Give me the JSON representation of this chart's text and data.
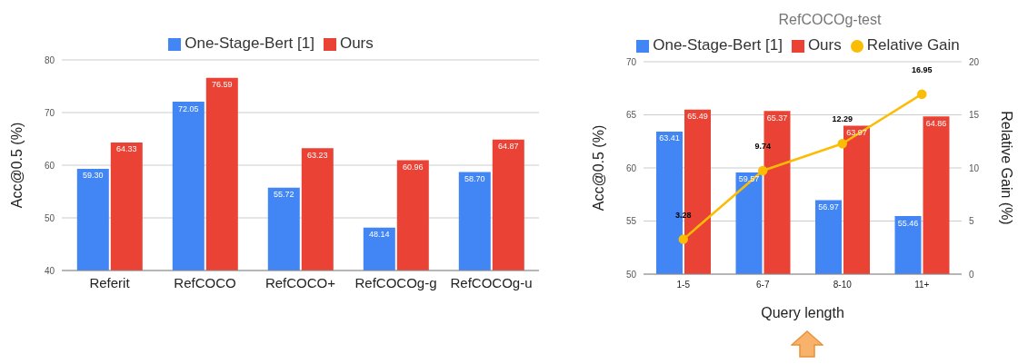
{
  "chart_data": [
    {
      "type": "bar",
      "categories": [
        "Referit",
        "RefCOCO",
        "RefCOCO+",
        "RefCOCOg-g",
        "RefCOCOg-u"
      ],
      "ylabel": "Acc@0.5 (%)",
      "ylim": [
        40,
        80
      ],
      "yticks": [
        40,
        50,
        60,
        70,
        80
      ],
      "grid": "y",
      "legend": "top",
      "series": [
        {
          "name": "One-Stage-Bert [1]",
          "color": "#4285f4",
          "values": [
            59.3,
            72.05,
            55.72,
            48.14,
            58.7
          ],
          "value_labels": [
            "59.30",
            "72.05",
            "55.72",
            "48.14",
            "58.70"
          ]
        },
        {
          "name": "Ours",
          "color": "#ea4335",
          "values": [
            64.33,
            76.59,
            63.23,
            60.96,
            64.87
          ],
          "value_labels": [
            "64.33",
            "76.59",
            "63.23",
            "60.96",
            "64.87"
          ]
        }
      ]
    },
    {
      "type": "bar",
      "title": "RefCOCOg-test",
      "categories": [
        "1-5",
        "6-7",
        "8-10",
        "11+"
      ],
      "xlabel": "Query length",
      "ylabel": "Acc@0.5 (%)",
      "y2label": "Relative Gain (%)",
      "ylim": [
        50,
        70
      ],
      "yticks": [
        50,
        55,
        60,
        65,
        70
      ],
      "y2lim": [
        0,
        20
      ],
      "y2ticks": [
        0,
        5,
        10,
        15,
        20
      ],
      "grid": "y",
      "legend": "top",
      "marker": "circle",
      "series": [
        {
          "name": "One-Stage-Bert [1]",
          "color": "#4285f4",
          "values": [
            63.41,
            59.57,
            56.97,
            55.46
          ],
          "value_labels": [
            "63.41",
            "59.57",
            "56.97",
            "55.46"
          ]
        },
        {
          "name": "Ours",
          "color": "#ea4335",
          "values": [
            65.49,
            65.37,
            63.97,
            64.86
          ],
          "value_labels": [
            "65.49",
            "65.37",
            "63.97",
            "64.86"
          ]
        },
        {
          "name": "Relative Gain",
          "type": "line",
          "axis": "y2",
          "color": "#fbbc04",
          "values": [
            3.28,
            9.74,
            12.29,
            16.95
          ],
          "value_labels": [
            "3.28",
            "9.74",
            "12.29",
            "16.95"
          ]
        }
      ]
    }
  ]
}
